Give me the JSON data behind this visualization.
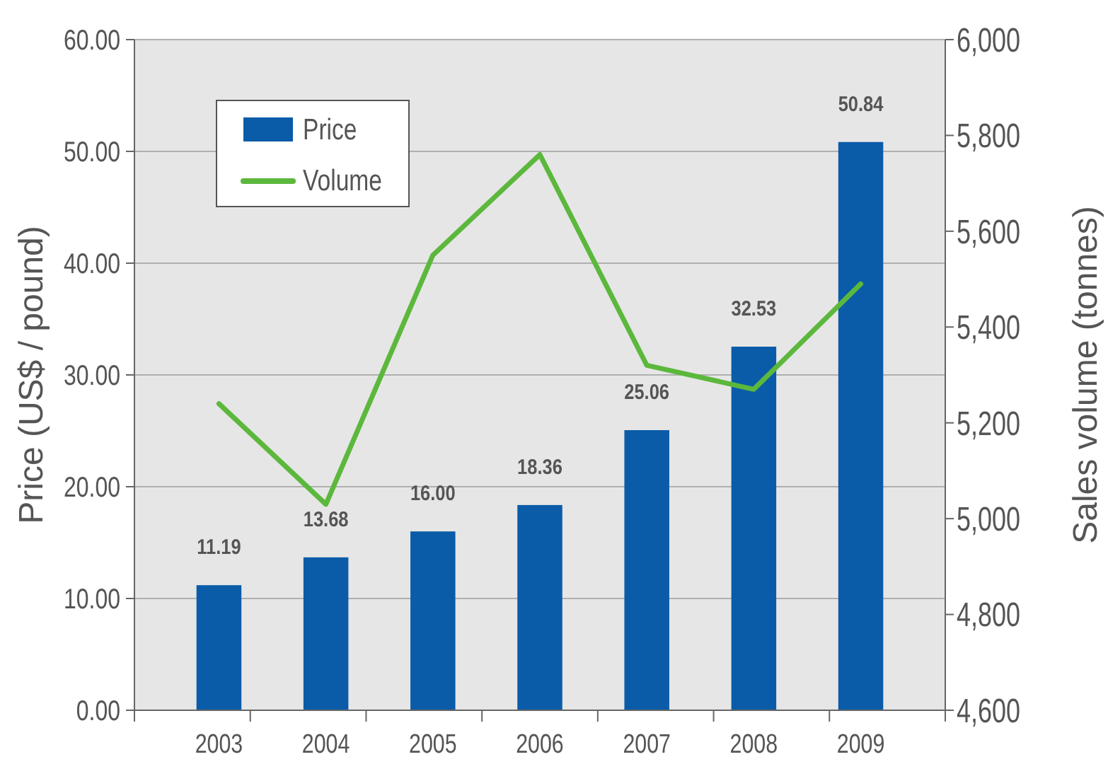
{
  "chart_data": {
    "type": "bar",
    "categories": [
      "2003",
      "2004",
      "2005",
      "2006",
      "2007",
      "2008",
      "2009"
    ],
    "series": [
      {
        "name": "Price",
        "color": "#0a5ca8",
        "values": [
          11.19,
          13.68,
          16.0,
          18.36,
          25.06,
          32.53,
          50.84
        ],
        "value_labels": [
          "11.19",
          "13.68",
          "16.00",
          "18.36",
          "25.06",
          "32.53",
          "50.84"
        ]
      },
      {
        "name": "Volume",
        "type": "line",
        "axis": "y2",
        "color": "#5cb83c",
        "values": [
          5240,
          5030,
          5550,
          5760,
          5320,
          5270,
          5490
        ]
      }
    ],
    "ylabel": "Price (US$ / pound)",
    "y2label": "Sales volume (tonnes)",
    "ylim": [
      0,
      60
    ],
    "yticks": [
      {
        "value": 0,
        "label": "0.00"
      },
      {
        "value": 10,
        "label": "10.00"
      },
      {
        "value": 20,
        "label": "20.00"
      },
      {
        "value": 30,
        "label": "30.00"
      },
      {
        "value": 40,
        "label": "40.00"
      },
      {
        "value": 50,
        "label": "50.00"
      },
      {
        "value": 60,
        "label": "60.00"
      }
    ],
    "y2lim": [
      4600,
      6000
    ],
    "y2ticks": [
      {
        "value": 4600,
        "label": "4,600"
      },
      {
        "value": 4800,
        "label": "4,800"
      },
      {
        "value": 5000,
        "label": "5,000"
      },
      {
        "value": 5200,
        "label": "5,200"
      },
      {
        "value": 5400,
        "label": "5,400"
      },
      {
        "value": 5600,
        "label": "5,600"
      },
      {
        "value": 5800,
        "label": "5,800"
      },
      {
        "value": 6000,
        "label": "6,000"
      }
    ],
    "grid": "y",
    "legend": "top left",
    "marker": "none"
  }
}
